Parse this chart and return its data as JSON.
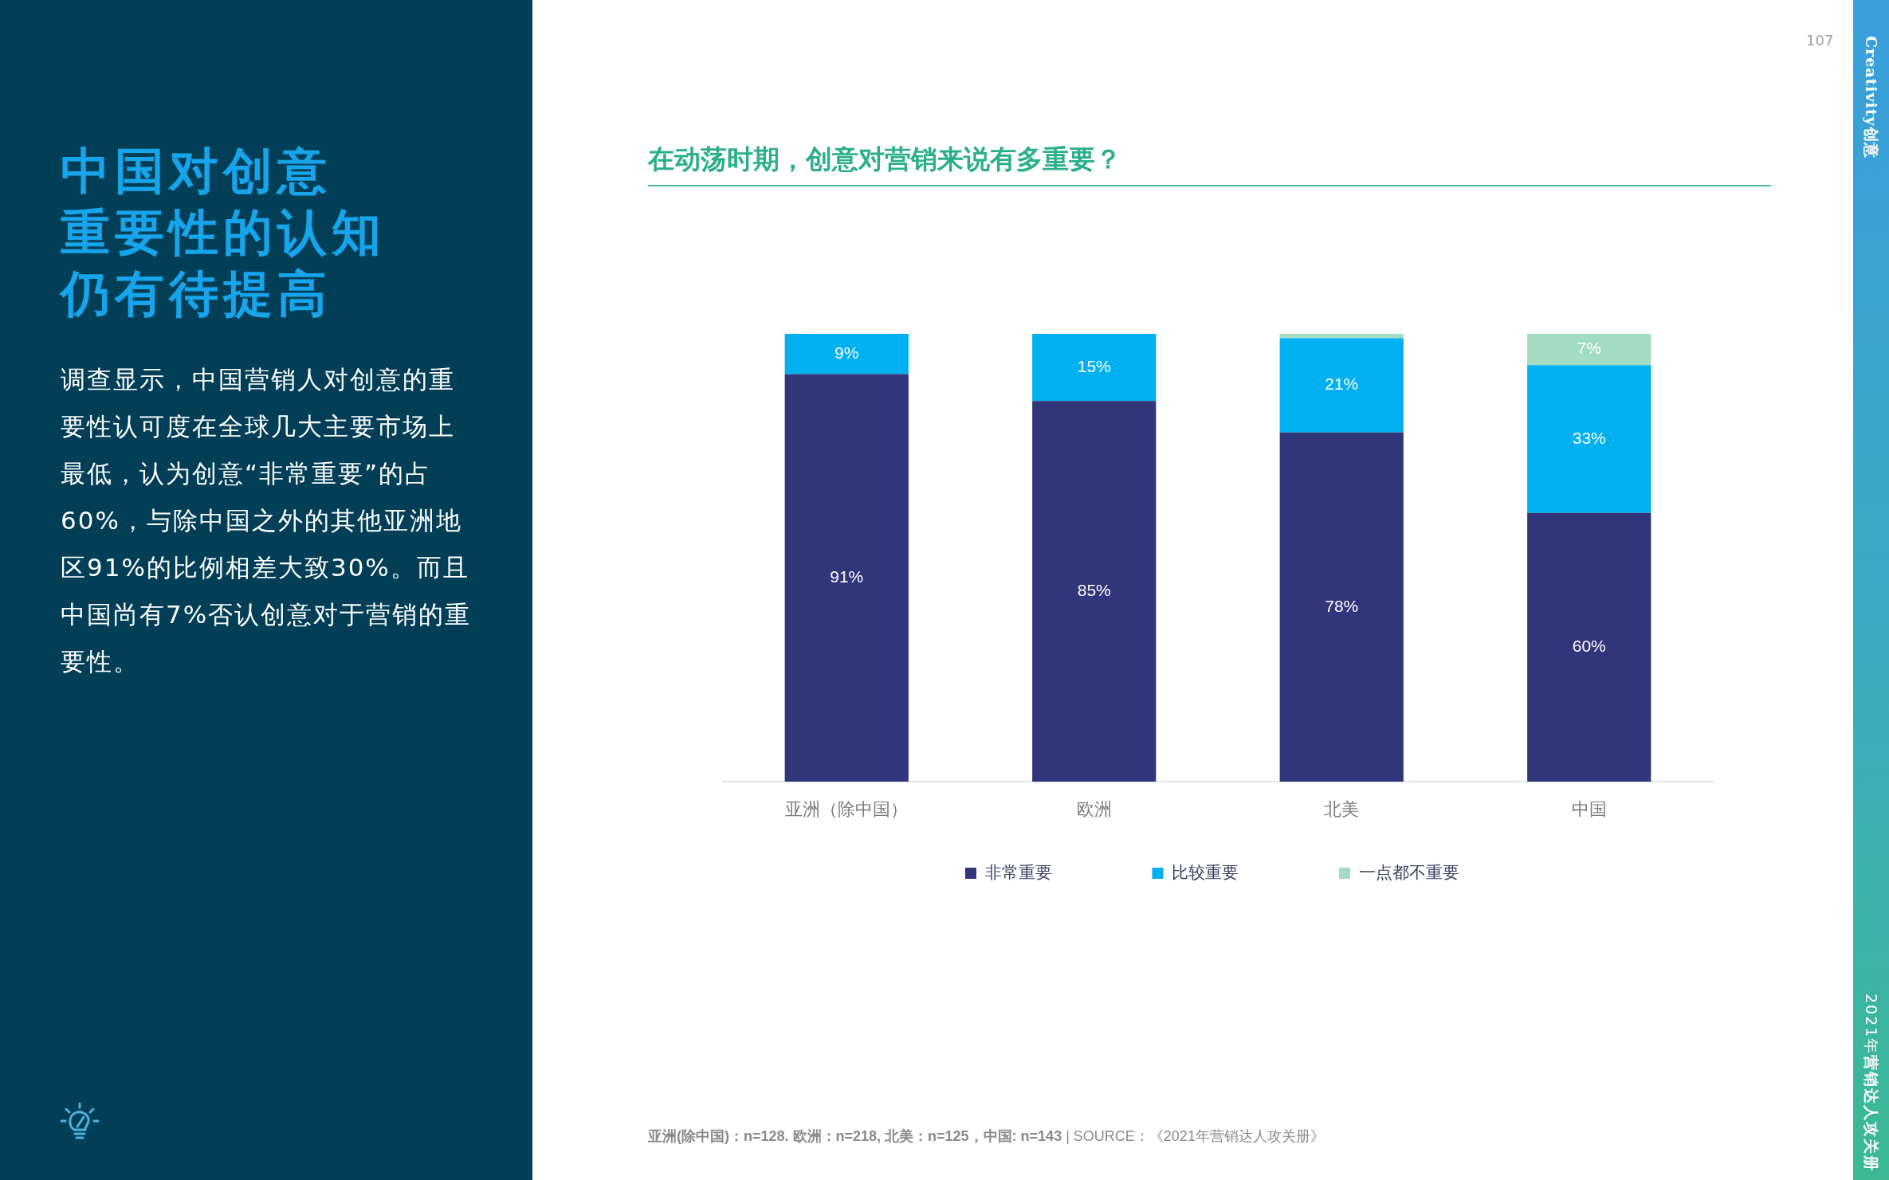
{
  "chart_data": {
    "type": "bar",
    "title": "在动荡时期，创意对营销来说有多重要？",
    "categories": [
      "亚洲（除中国）",
      "欧洲",
      "北美",
      "中国"
    ],
    "series": [
      {
        "name": "非常重要",
        "color": "#31357a",
        "values": [
          91,
          85,
          78,
          60
        ],
        "value_labels": [
          "91%",
          "85%",
          "78%",
          "60%"
        ]
      },
      {
        "name": "比较重要",
        "color": "#00b0f0",
        "values": [
          9,
          15,
          21,
          33
        ],
        "value_labels": [
          "9%",
          "15%",
          "21%",
          "33%"
        ]
      },
      {
        "name": "一点都不重要",
        "color": "#a3dcc1",
        "values": [
          null,
          null,
          1,
          7
        ],
        "value_labels": [
          null,
          null,
          null,
          "7%"
        ]
      }
    ],
    "stacked": true,
    "legend": "bottom",
    "tick_labels": "x",
    "annotations": [
      "中国对创意",
      "重要性的认知",
      "仍有待提高",
      "调查显示，中国营销人对创意的重要性认可度在全球几大主要市场上最低，认为创意“非常重要”的占60%，与除中国之外的其他亚洲地区91%的比例相差大致30%。而且中国尚有7%否认创意对于营销的重要性。",
      "亚洲(除中国)：n=128. 欧洲：n=218, 北美：n=125，中国: n=143",
      "| SOURCE：《2021年营销达人攻关册》",
      "107",
      "Creativity创意",
      "2021年",
      "营销达人攻关册"
    ]
  }
}
